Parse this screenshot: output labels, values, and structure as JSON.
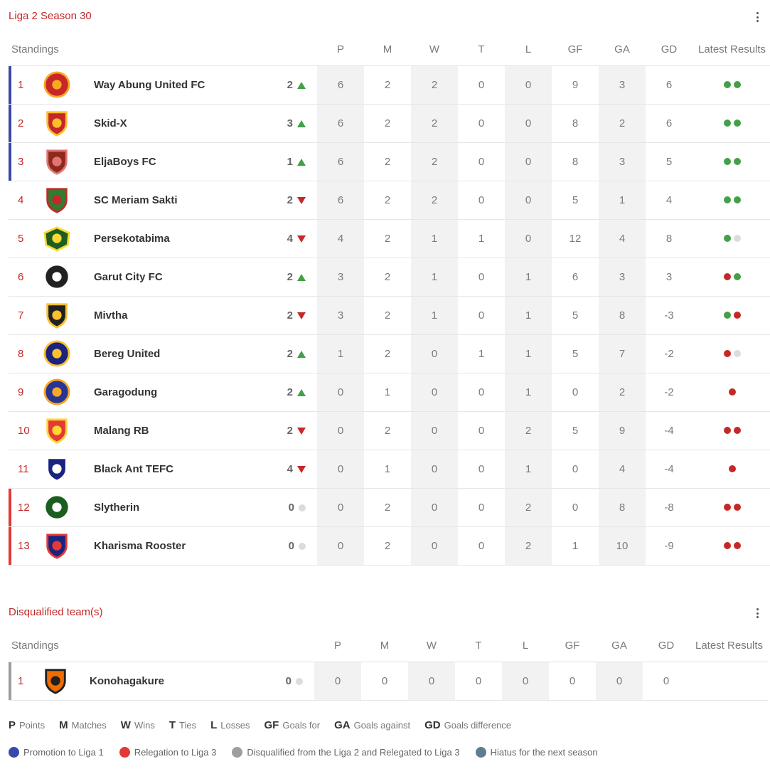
{
  "main": {
    "title": "Liga 2 Season 30",
    "headers": {
      "standings": "Standings",
      "p": "P",
      "m": "M",
      "w": "W",
      "t": "T",
      "l": "L",
      "gf": "GF",
      "ga": "GA",
      "gd": "GD",
      "latest": "Latest Results"
    },
    "rows": [
      {
        "pos": "1",
        "team": "Way Abung United FC",
        "change": "2",
        "trend": "up",
        "zone": "promo",
        "p": "6",
        "m": "2",
        "w": "2",
        "t": "0",
        "l": "0",
        "gf": "9",
        "ga": "3",
        "gd": "6",
        "results": [
          "W",
          "W"
        ],
        "crest": {
          "name": "crest-way-abung-united-icon",
          "shape": "round",
          "c1": "#c62828",
          "c2": "#f9a825"
        }
      },
      {
        "pos": "2",
        "team": "Skid-X",
        "change": "3",
        "trend": "up",
        "zone": "promo",
        "p": "6",
        "m": "2",
        "w": "2",
        "t": "0",
        "l": "0",
        "gf": "8",
        "ga": "2",
        "gd": "6",
        "results": [
          "W",
          "W"
        ],
        "crest": {
          "name": "crest-skid-x-icon",
          "shape": "shield",
          "c1": "#c62828",
          "c2": "#fbc02d"
        }
      },
      {
        "pos": "3",
        "team": "EljaBoys FC",
        "change": "1",
        "trend": "up",
        "zone": "promo",
        "p": "6",
        "m": "2",
        "w": "2",
        "t": "0",
        "l": "0",
        "gf": "8",
        "ga": "3",
        "gd": "5",
        "results": [
          "W",
          "W"
        ],
        "crest": {
          "name": "crest-eljaboys-icon",
          "shape": "shield",
          "c1": "#8e2a1c",
          "c2": "#e57373"
        }
      },
      {
        "pos": "4",
        "team": "SC Meriam Sakti",
        "change": "2",
        "trend": "down",
        "zone": "",
        "p": "6",
        "m": "2",
        "w": "2",
        "t": "0",
        "l": "0",
        "gf": "5",
        "ga": "1",
        "gd": "4",
        "results": [
          "W",
          "W"
        ],
        "crest": {
          "name": "crest-sc-meriam-sakti-icon",
          "shape": "shield",
          "c1": "#2e7d32",
          "c2": "#c62828"
        }
      },
      {
        "pos": "5",
        "team": "Persekotabima",
        "change": "4",
        "trend": "down",
        "zone": "",
        "p": "4",
        "m": "2",
        "w": "1",
        "t": "1",
        "l": "0",
        "gf": "12",
        "ga": "4",
        "gd": "8",
        "results": [
          "W",
          "D"
        ],
        "crest": {
          "name": "crest-persekotabima-icon",
          "shape": "hex",
          "c1": "#1b5e20",
          "c2": "#fdd835"
        }
      },
      {
        "pos": "6",
        "team": "Garut City FC",
        "change": "2",
        "trend": "up",
        "zone": "",
        "p": "3",
        "m": "2",
        "w": "1",
        "t": "0",
        "l": "1",
        "gf": "6",
        "ga": "3",
        "gd": "3",
        "results": [
          "L",
          "W"
        ],
        "crest": {
          "name": "crest-garut-city-icon",
          "shape": "round",
          "c1": "#212121",
          "c2": "#ffffff"
        }
      },
      {
        "pos": "7",
        "team": "Mivtha",
        "change": "2",
        "trend": "down",
        "zone": "",
        "p": "3",
        "m": "2",
        "w": "1",
        "t": "0",
        "l": "1",
        "gf": "5",
        "ga": "8",
        "gd": "-3",
        "results": [
          "W",
          "L"
        ],
        "crest": {
          "name": "crest-mivtha-icon",
          "shape": "shield",
          "c1": "#212121",
          "c2": "#fbc02d"
        }
      },
      {
        "pos": "8",
        "team": "Bereg United",
        "change": "2",
        "trend": "up",
        "zone": "",
        "p": "1",
        "m": "2",
        "w": "0",
        "t": "1",
        "l": "1",
        "gf": "5",
        "ga": "7",
        "gd": "-2",
        "results": [
          "L",
          "D"
        ],
        "crest": {
          "name": "crest-bereg-united-icon",
          "shape": "round",
          "c1": "#1a237e",
          "c2": "#fbc02d"
        }
      },
      {
        "pos": "9",
        "team": "Garagodung",
        "change": "2",
        "trend": "up",
        "zone": "",
        "p": "0",
        "m": "1",
        "w": "0",
        "t": "0",
        "l": "1",
        "gf": "0",
        "ga": "2",
        "gd": "-2",
        "results": [
          "L"
        ],
        "crest": {
          "name": "crest-garagodung-icon",
          "shape": "round",
          "c1": "#283593",
          "c2": "#f9a825"
        }
      },
      {
        "pos": "10",
        "team": "Malang RB",
        "change": "2",
        "trend": "down",
        "zone": "",
        "p": "0",
        "m": "2",
        "w": "0",
        "t": "0",
        "l": "2",
        "gf": "5",
        "ga": "9",
        "gd": "-4",
        "results": [
          "L",
          "L"
        ],
        "crest": {
          "name": "crest-malang-rb-icon",
          "shape": "shield",
          "c1": "#e53935",
          "c2": "#fdd835"
        }
      },
      {
        "pos": "11",
        "team": "Black Ant TEFC",
        "change": "4",
        "trend": "down",
        "zone": "",
        "p": "0",
        "m": "1",
        "w": "0",
        "t": "0",
        "l": "1",
        "gf": "0",
        "ga": "4",
        "gd": "-4",
        "results": [
          "L"
        ],
        "crest": {
          "name": "crest-black-ant-icon",
          "shape": "shield",
          "c1": "#1a237e",
          "c2": "#ffffff"
        }
      },
      {
        "pos": "12",
        "team": "Slytherin",
        "change": "0",
        "trend": "same",
        "zone": "releg",
        "p": "0",
        "m": "2",
        "w": "0",
        "t": "0",
        "l": "2",
        "gf": "0",
        "ga": "8",
        "gd": "-8",
        "results": [
          "L",
          "L"
        ],
        "crest": {
          "name": "crest-slytherin-icon",
          "shape": "round",
          "c1": "#1b5e20",
          "c2": "#ffffff"
        }
      },
      {
        "pos": "13",
        "team": "Kharisma Rooster",
        "change": "0",
        "trend": "same",
        "zone": "releg",
        "p": "0",
        "m": "2",
        "w": "0",
        "t": "0",
        "l": "2",
        "gf": "1",
        "ga": "10",
        "gd": "-9",
        "results": [
          "L",
          "L"
        ],
        "crest": {
          "name": "crest-kharisma-rooster-icon",
          "shape": "shield",
          "c1": "#1a237e",
          "c2": "#e53935"
        }
      }
    ]
  },
  "disqualified": {
    "title": "Disqualified team(s)",
    "headers": {
      "standings": "Standings",
      "p": "P",
      "m": "M",
      "w": "W",
      "t": "T",
      "l": "L",
      "gf": "GF",
      "ga": "GA",
      "gd": "GD",
      "latest": "Latest Results"
    },
    "rows": [
      {
        "pos": "1",
        "team": "Konohagakure",
        "change": "0",
        "trend": "same",
        "zone": "dq",
        "p": "0",
        "m": "0",
        "w": "0",
        "t": "0",
        "l": "0",
        "gf": "0",
        "ga": "0",
        "gd": "0",
        "results": [],
        "crest": {
          "name": "crest-konohagakure-icon",
          "shape": "shield",
          "c1": "#ef6c00",
          "c2": "#212121"
        }
      }
    ]
  },
  "abbr_legend": [
    {
      "abbr": "P",
      "text": "Points"
    },
    {
      "abbr": "M",
      "text": "Matches"
    },
    {
      "abbr": "W",
      "text": "Wins"
    },
    {
      "abbr": "T",
      "text": "Ties"
    },
    {
      "abbr": "L",
      "text": "Losses"
    },
    {
      "abbr": "GF",
      "text": "Goals for"
    },
    {
      "abbr": "GA",
      "text": "Goals against"
    },
    {
      "abbr": "GD",
      "text": "Goals difference"
    }
  ],
  "zone_legend": [
    {
      "text": "Promotion to Liga 1",
      "color": "#3949ab"
    },
    {
      "text": "Relegation to Liga 3",
      "color": "#e53935"
    },
    {
      "text": "Disqualified from the Liga 2 and Relegated to Liga 3",
      "color": "#9e9e9e"
    },
    {
      "text": "Hiatus for the next season",
      "color": "#5f7d8e"
    }
  ]
}
